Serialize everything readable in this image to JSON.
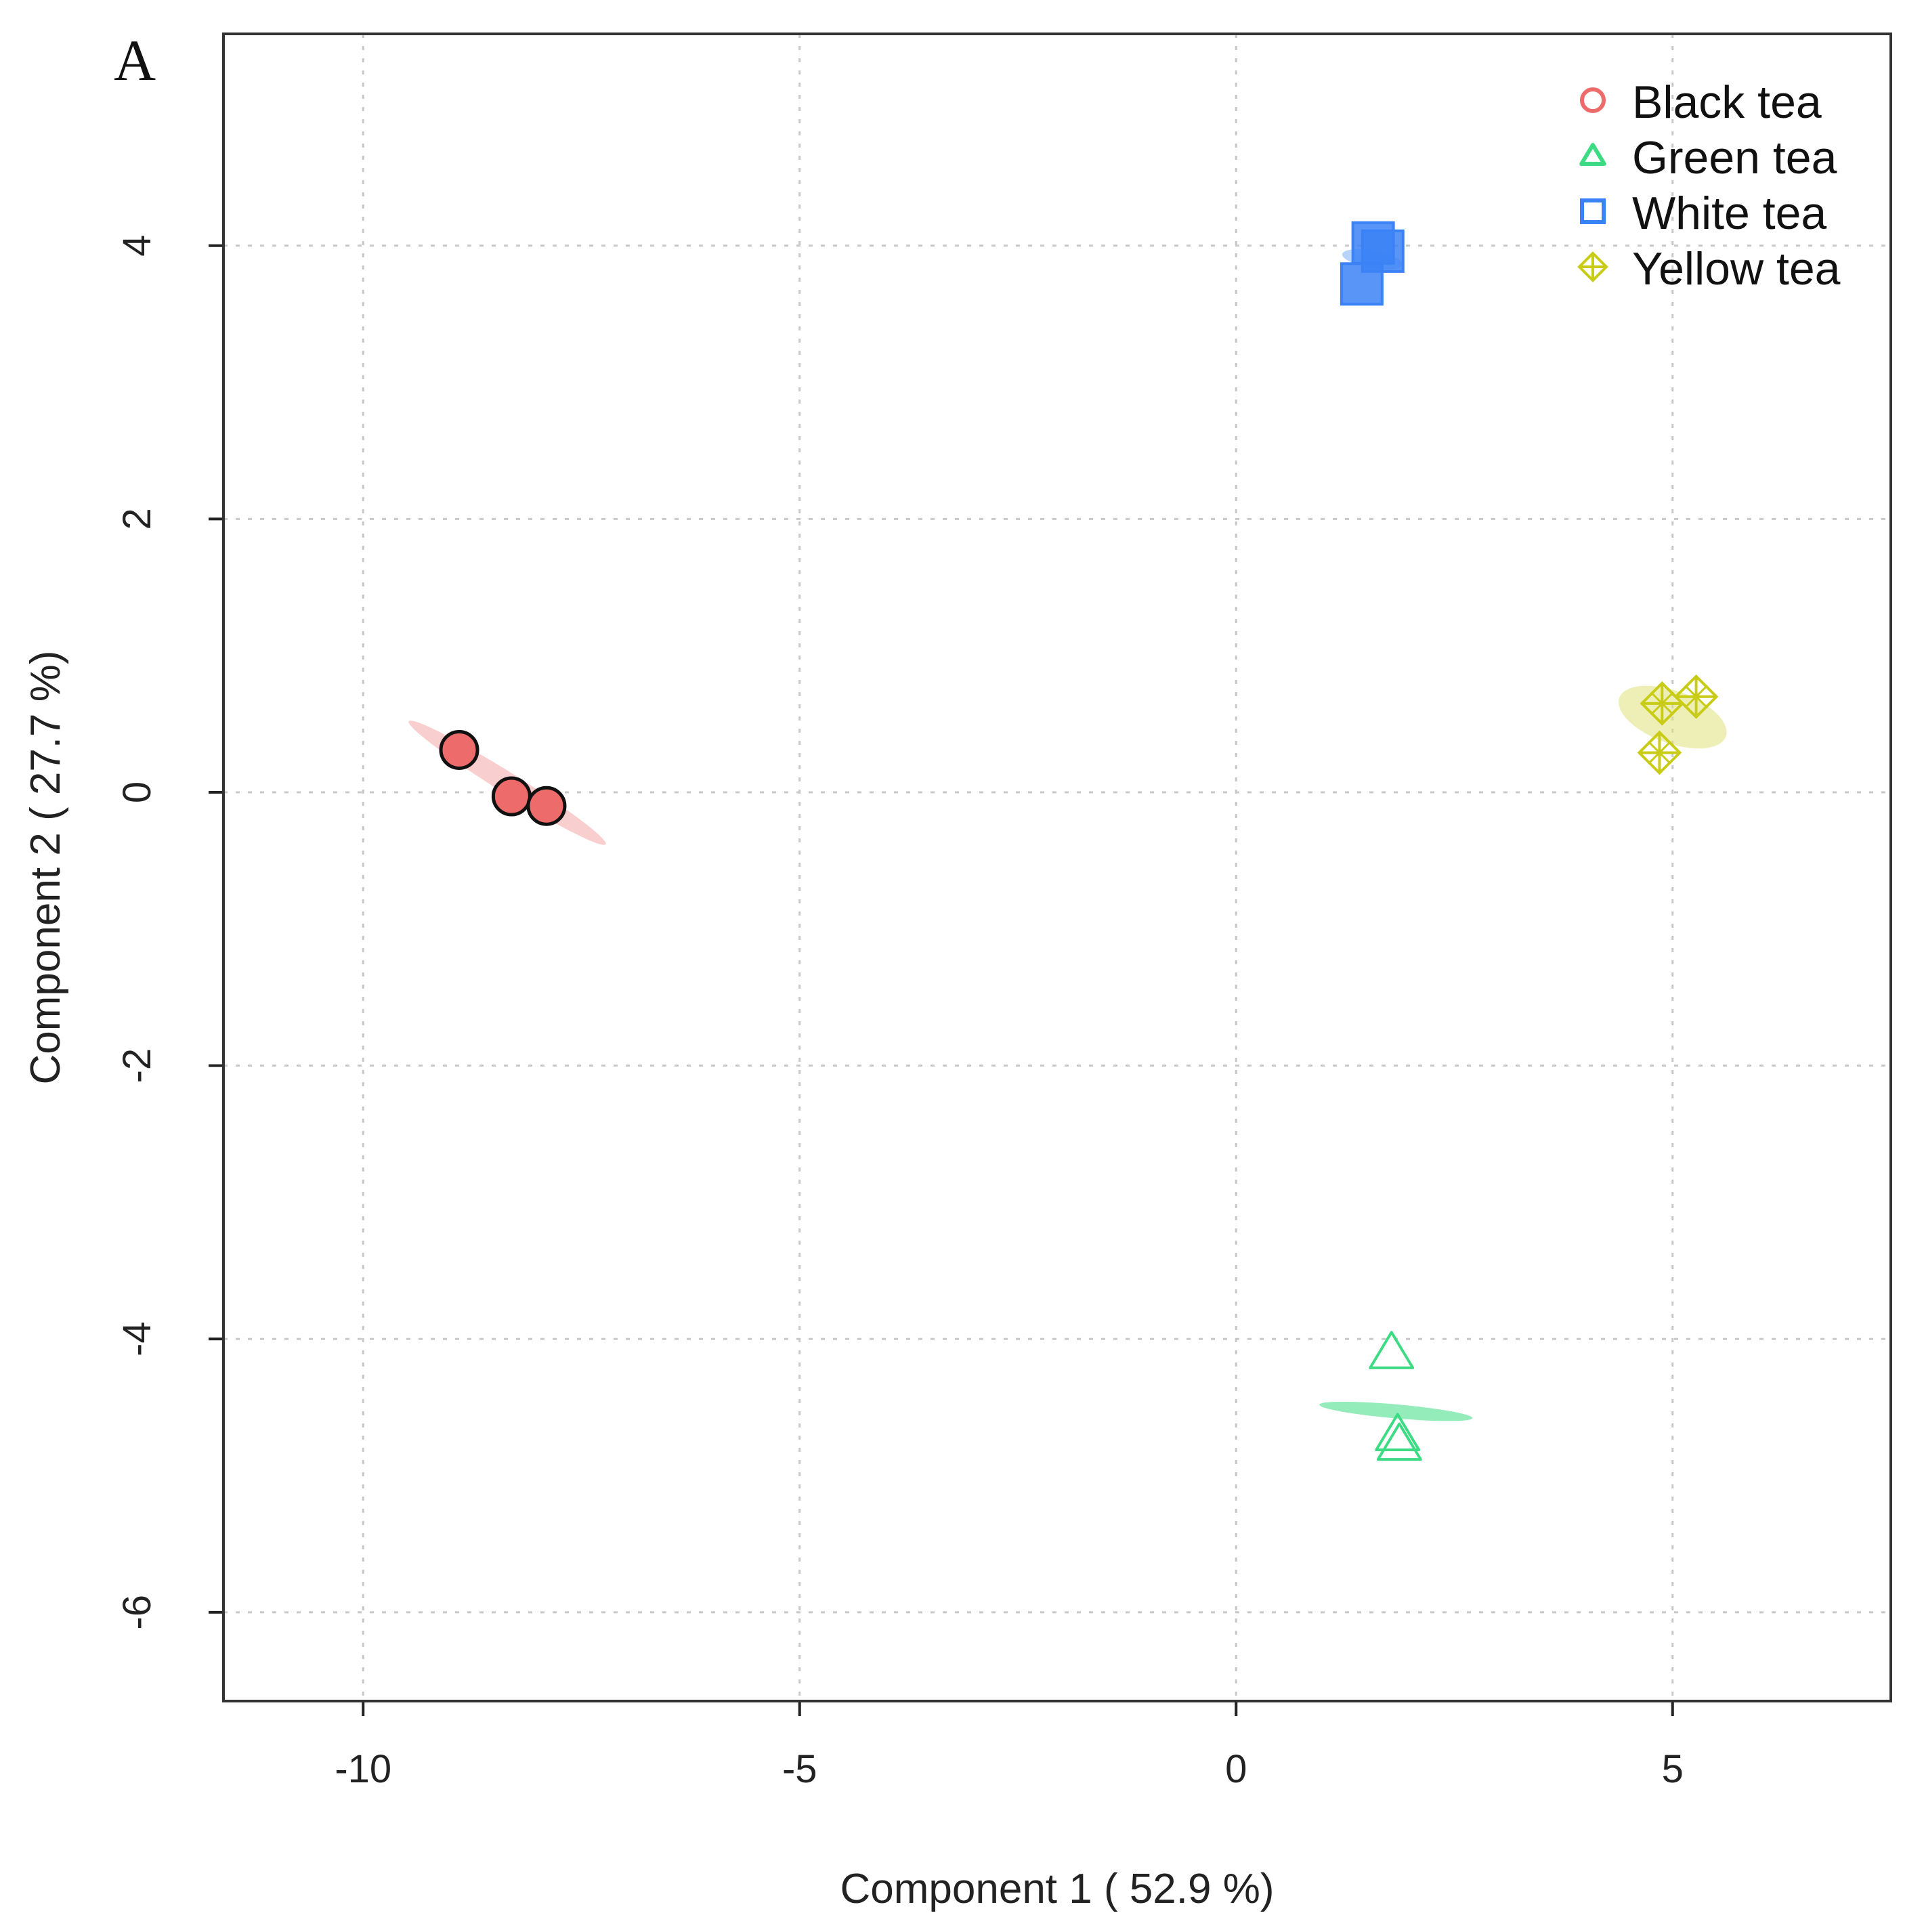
{
  "panel_label": "A",
  "chart_data": {
    "type": "scatter",
    "title": "",
    "xlabel": "Component 1 ( 52.9 %)",
    "ylabel": "Component 2 ( 27.7 %)",
    "xlim": [
      -11.6,
      7.5
    ],
    "ylim": [
      -6.65,
      5.55
    ],
    "xticks": [
      -10,
      -5,
      0,
      5
    ],
    "yticks": [
      -6,
      -4,
      -2,
      0,
      2,
      4
    ],
    "grid": true,
    "legend_position": "top-right",
    "series": [
      {
        "name": "Black tea",
        "marker": "circle",
        "color": "#ee6b6b",
        "ellipse_color": "#f4a6a6",
        "points": [
          [
            -8.9,
            0.31
          ],
          [
            -8.3,
            -0.03
          ],
          [
            -7.9,
            -0.1
          ]
        ],
        "ellipse": {
          "cx": -8.35,
          "cy": 0.07,
          "rx": 1.33,
          "ry": 0.12,
          "angle_deg": -32
        }
      },
      {
        "name": "Green tea",
        "marker": "triangle",
        "color": "#3ddc84",
        "ellipse_color": "#3ddc84",
        "points": [
          [
            1.78,
            -4.1
          ],
          [
            1.85,
            -4.7
          ],
          [
            1.87,
            -4.77
          ]
        ],
        "ellipse": {
          "cx": 1.83,
          "cy": -4.53,
          "rx": 0.08,
          "ry": 0.88,
          "angle_deg": 85
        }
      },
      {
        "name": "White tea",
        "marker": "square",
        "color": "#3b82f6",
        "ellipse_color": "#7fb1f5",
        "points": [
          [
            1.57,
            4.02
          ],
          [
            1.68,
            3.96
          ],
          [
            1.44,
            3.72
          ]
        ],
        "ellipse": {
          "cx": 1.56,
          "cy": 3.9,
          "rx": 0.1,
          "ry": 0.35,
          "angle_deg": 80
        }
      },
      {
        "name": "Yellow tea",
        "marker": "diamond-plus",
        "color": "#c9cc16",
        "ellipse_color": "#e0e27a",
        "points": [
          [
            4.88,
            0.65
          ],
          [
            5.27,
            0.7
          ],
          [
            4.85,
            0.29
          ]
        ],
        "ellipse": {
          "cx": 5.0,
          "cy": 0.55,
          "rx": 0.3,
          "ry": 0.65,
          "angle_deg": 70
        }
      }
    ]
  }
}
